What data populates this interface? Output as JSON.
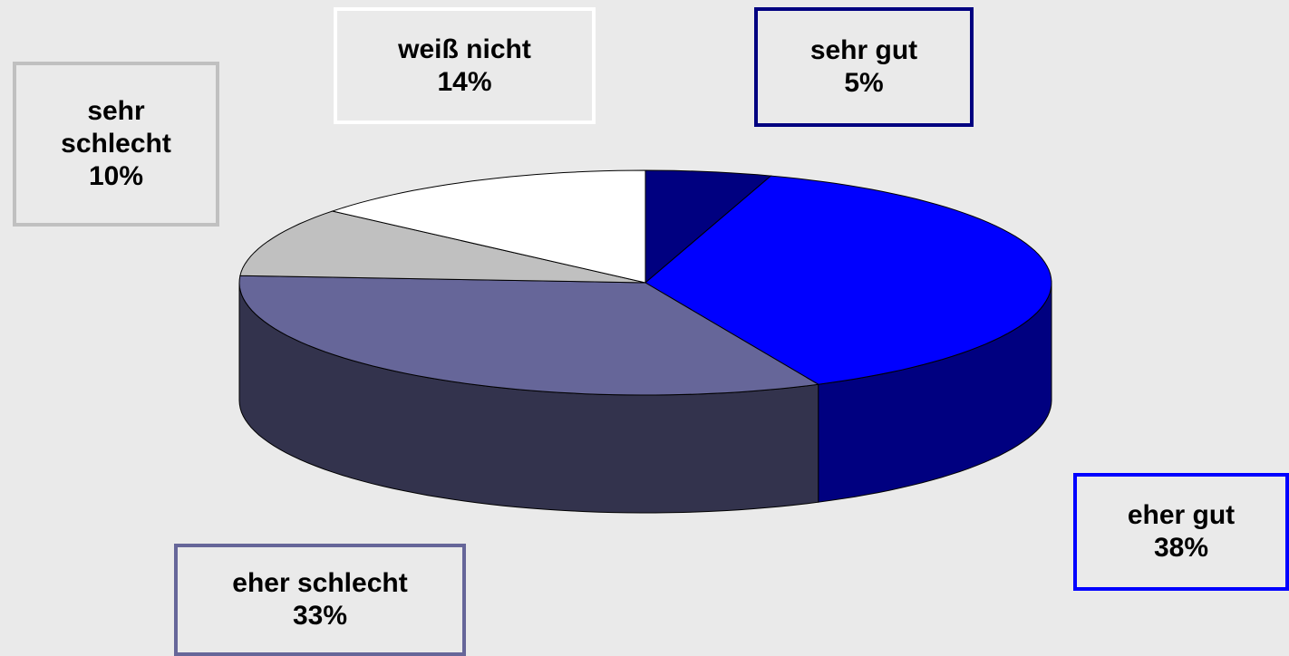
{
  "chart_data": {
    "type": "pie",
    "categories": [
      "sehr gut",
      "eher gut",
      "eher schlecht",
      "sehr schlecht",
      "weiß nicht"
    ],
    "values": [
      5,
      38,
      33,
      10,
      14
    ],
    "value_labels": [
      "5%",
      "38%",
      "33%",
      "10%",
      "14%"
    ],
    "colors": [
      "#000080",
      "#0000ff",
      "#666699",
      "#c0c0c0",
      "#ffffff"
    ]
  }
}
